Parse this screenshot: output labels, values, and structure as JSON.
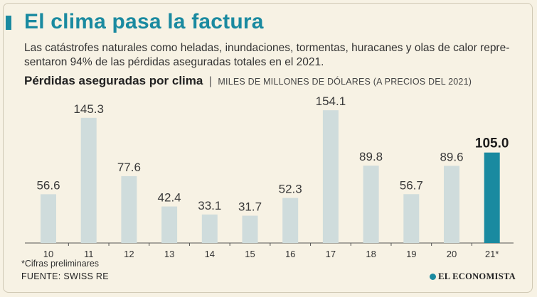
{
  "header": {
    "title": "El clima pasa la factura",
    "subtitle": "Las catástrofes naturales como heladas, inundaciones, tormentas, huracanes y olas de calor repre-sentaron 94% de las pérdidas aseguradas totales en el 2021.",
    "accent_color": "#1a8aa0"
  },
  "chart_header": {
    "title": "Pérdidas aseguradas por clima",
    "separator": "|",
    "units": "MILES DE MILLONES DE DÓLARES (A PRECIOS DEL 2021)"
  },
  "chart_data": {
    "type": "bar",
    "categories": [
      "10",
      "11",
      "12",
      "13",
      "14",
      "15",
      "16",
      "17",
      "18",
      "19",
      "20",
      "21*"
    ],
    "values": [
      56.6,
      145.3,
      77.6,
      42.4,
      33.1,
      31.7,
      52.3,
      154.1,
      89.8,
      56.7,
      89.6,
      105.0
    ],
    "value_labels": [
      "56.6",
      "145.3",
      "77.6",
      "42.4",
      "33.1",
      "31.7",
      "52.3",
      "154.1",
      "89.8",
      "56.7",
      "89.6",
      "105.0"
    ],
    "highlight_index": 11,
    "colors": {
      "bar": "#cfdcdc",
      "highlight": "#1a8aa0",
      "axis": "#555555"
    },
    "ylim": [
      0,
      160
    ],
    "grid": false,
    "legend": "none"
  },
  "footer": {
    "footnote": "*Cifras preliminares",
    "source": "FUENTE: SWISS RE",
    "brand": "EL ECONOMISTA"
  }
}
